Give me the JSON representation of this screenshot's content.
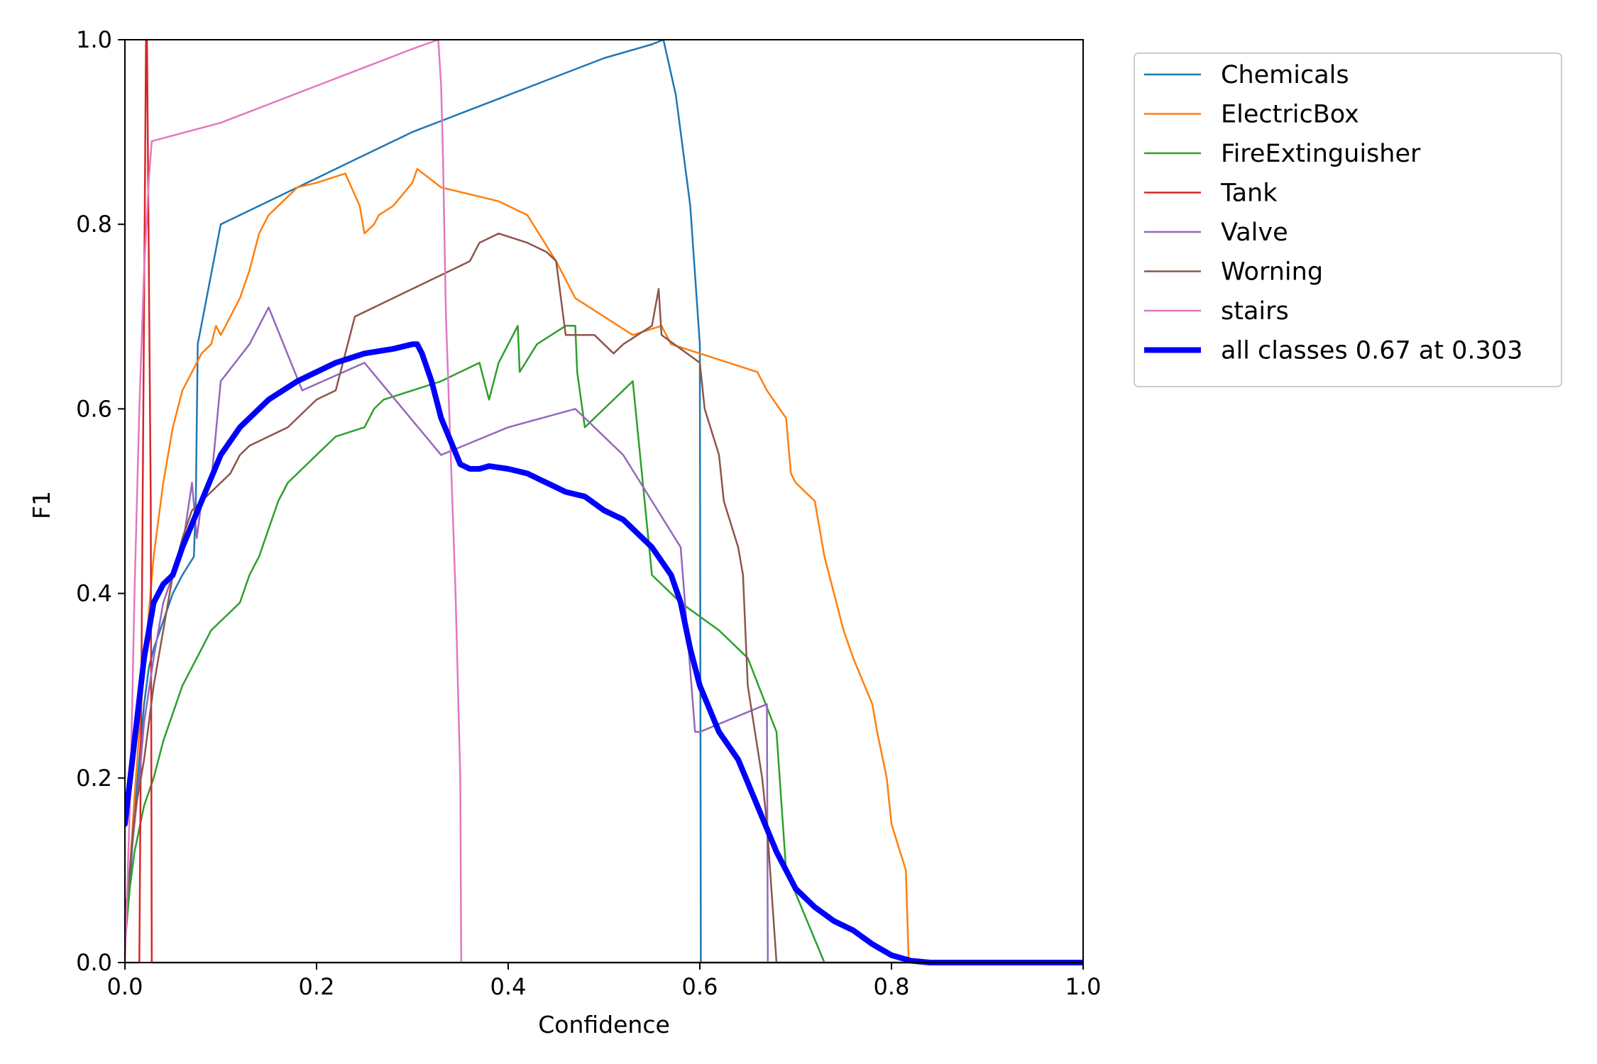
{
  "chart_data": {
    "type": "line",
    "title": "",
    "xlabel": "Confidence",
    "ylabel": "F1",
    "xlim": [
      0,
      1
    ],
    "ylim": [
      0,
      1
    ],
    "xticks": [
      "0.0",
      "0.2",
      "0.4",
      "0.6",
      "0.8",
      "1.0"
    ],
    "yticks": [
      "0.0",
      "0.2",
      "0.4",
      "0.6",
      "0.8",
      "1.0"
    ],
    "grid": false,
    "legend_position": "outside-right-top",
    "series": [
      {
        "name": "Chemicals",
        "color": "#1f77b4",
        "width": "thin",
        "x": [
          0.0,
          0.003,
          0.006,
          0.01,
          0.015,
          0.02,
          0.025,
          0.03,
          0.04,
          0.05,
          0.06,
          0.072,
          0.074,
          0.076,
          0.1,
          0.15,
          0.2,
          0.25,
          0.3,
          0.35,
          0.4,
          0.45,
          0.5,
          0.55,
          0.562,
          0.575,
          0.59,
          0.6,
          0.601,
          1.0
        ],
        "y": [
          0.02,
          0.07,
          0.1,
          0.16,
          0.22,
          0.28,
          0.32,
          0.34,
          0.37,
          0.4,
          0.42,
          0.44,
          0.5,
          0.67,
          0.8,
          0.825,
          0.85,
          0.875,
          0.9,
          0.92,
          0.94,
          0.96,
          0.98,
          0.995,
          1.0,
          0.94,
          0.82,
          0.67,
          0.0,
          0.0
        ]
      },
      {
        "name": "ElectricBox",
        "color": "#ff7f0e",
        "width": "thin",
        "x": [
          0.0,
          0.005,
          0.01,
          0.015,
          0.02,
          0.025,
          0.03,
          0.04,
          0.045,
          0.05,
          0.06,
          0.07,
          0.08,
          0.09,
          0.095,
          0.1,
          0.105,
          0.11,
          0.12,
          0.13,
          0.14,
          0.15,
          0.16,
          0.17,
          0.18,
          0.2,
          0.23,
          0.245,
          0.25,
          0.26,
          0.265,
          0.28,
          0.3,
          0.305,
          0.33,
          0.39,
          0.42,
          0.45,
          0.47,
          0.5,
          0.53,
          0.56,
          0.57,
          0.6,
          0.66,
          0.67,
          0.69,
          0.695,
          0.7,
          0.72,
          0.73,
          0.74,
          0.75,
          0.76,
          0.78,
          0.785,
          0.795,
          0.8,
          0.815,
          0.818,
          1.0
        ],
        "y": [
          0.05,
          0.1,
          0.18,
          0.25,
          0.32,
          0.38,
          0.44,
          0.52,
          0.55,
          0.58,
          0.62,
          0.64,
          0.66,
          0.67,
          0.69,
          0.68,
          0.69,
          0.7,
          0.72,
          0.75,
          0.79,
          0.81,
          0.82,
          0.83,
          0.84,
          0.845,
          0.855,
          0.82,
          0.79,
          0.8,
          0.81,
          0.82,
          0.845,
          0.86,
          0.84,
          0.825,
          0.81,
          0.76,
          0.72,
          0.7,
          0.68,
          0.69,
          0.67,
          0.66,
          0.64,
          0.62,
          0.59,
          0.53,
          0.52,
          0.5,
          0.44,
          0.4,
          0.36,
          0.33,
          0.28,
          0.25,
          0.2,
          0.15,
          0.1,
          0.0,
          0.0
        ]
      },
      {
        "name": "FireExtinguisher",
        "color": "#2ca02c",
        "width": "thin",
        "x": [
          0.0,
          0.005,
          0.01,
          0.02,
          0.03,
          0.04,
          0.05,
          0.06,
          0.07,
          0.08,
          0.09,
          0.1,
          0.11,
          0.12,
          0.13,
          0.14,
          0.15,
          0.16,
          0.17,
          0.18,
          0.2,
          0.22,
          0.25,
          0.26,
          0.27,
          0.3,
          0.33,
          0.37,
          0.38,
          0.39,
          0.41,
          0.412,
          0.43,
          0.46,
          0.47,
          0.472,
          0.48,
          0.5,
          0.53,
          0.55,
          0.58,
          0.62,
          0.65,
          0.68,
          0.69,
          0.73,
          1.0
        ],
        "y": [
          0.02,
          0.08,
          0.12,
          0.17,
          0.2,
          0.24,
          0.27,
          0.3,
          0.32,
          0.34,
          0.36,
          0.37,
          0.38,
          0.39,
          0.42,
          0.44,
          0.47,
          0.5,
          0.52,
          0.53,
          0.55,
          0.57,
          0.58,
          0.6,
          0.61,
          0.62,
          0.63,
          0.65,
          0.61,
          0.65,
          0.69,
          0.64,
          0.67,
          0.69,
          0.69,
          0.64,
          0.58,
          0.6,
          0.63,
          0.42,
          0.39,
          0.36,
          0.33,
          0.25,
          0.1,
          0.0,
          0.0
        ]
      },
      {
        "name": "Tank",
        "color": "#d62728",
        "width": "thin",
        "x": [
          0.0,
          0.015,
          0.022,
          0.023,
          0.027,
          0.028,
          1.0
        ],
        "y": [
          0.0,
          0.0,
          1.0,
          1.0,
          0.5,
          0.0,
          0.0
        ]
      },
      {
        "name": "Valve",
        "color": "#9467bd",
        "width": "thin",
        "x": [
          0.0,
          0.005,
          0.01,
          0.015,
          0.02,
          0.03,
          0.04,
          0.05,
          0.06,
          0.07,
          0.075,
          0.08,
          0.09,
          0.1,
          0.13,
          0.15,
          0.185,
          0.25,
          0.33,
          0.4,
          0.47,
          0.52,
          0.58,
          0.595,
          0.6,
          0.67,
          0.671,
          1.0
        ],
        "y": [
          0.05,
          0.1,
          0.15,
          0.2,
          0.26,
          0.33,
          0.39,
          0.42,
          0.45,
          0.52,
          0.46,
          0.5,
          0.52,
          0.63,
          0.67,
          0.71,
          0.62,
          0.65,
          0.55,
          0.58,
          0.6,
          0.55,
          0.45,
          0.25,
          0.25,
          0.28,
          0.0,
          0.0
        ]
      },
      {
        "name": "Worning",
        "color": "#8c564b",
        "width": "thin",
        "x": [
          0.0,
          0.005,
          0.01,
          0.02,
          0.03,
          0.04,
          0.05,
          0.06,
          0.07,
          0.08,
          0.09,
          0.1,
          0.11,
          0.12,
          0.13,
          0.15,
          0.17,
          0.18,
          0.2,
          0.22,
          0.24,
          0.3,
          0.32,
          0.36,
          0.37,
          0.39,
          0.42,
          0.44,
          0.45,
          0.46,
          0.49,
          0.51,
          0.52,
          0.55,
          0.557,
          0.56,
          0.6,
          0.605,
          0.62,
          0.625,
          0.64,
          0.645,
          0.65,
          0.665,
          0.67,
          0.68,
          1.0
        ],
        "y": [
          0.05,
          0.1,
          0.16,
          0.22,
          0.3,
          0.36,
          0.42,
          0.46,
          0.49,
          0.5,
          0.51,
          0.52,
          0.53,
          0.55,
          0.56,
          0.57,
          0.58,
          0.59,
          0.61,
          0.62,
          0.7,
          0.73,
          0.74,
          0.76,
          0.78,
          0.79,
          0.78,
          0.77,
          0.76,
          0.68,
          0.68,
          0.66,
          0.67,
          0.69,
          0.73,
          0.68,
          0.65,
          0.6,
          0.55,
          0.5,
          0.45,
          0.42,
          0.3,
          0.2,
          0.15,
          0.0,
          0.0
        ]
      },
      {
        "name": "stairs",
        "color": "#e377c2",
        "width": "thin",
        "x": [
          0.0,
          0.003,
          0.006,
          0.01,
          0.015,
          0.02,
          0.025,
          0.028,
          0.1,
          0.2,
          0.3,
          0.327,
          0.33,
          0.332,
          0.335,
          0.345,
          0.35,
          0.351,
          1.0
        ],
        "y": [
          0.0,
          0.1,
          0.2,
          0.4,
          0.6,
          0.75,
          0.85,
          0.89,
          0.91,
          0.95,
          0.99,
          1.0,
          0.95,
          0.87,
          0.7,
          0.4,
          0.2,
          0.0,
          0.0
        ]
      },
      {
        "name": "all classes 0.67 at 0.303",
        "color": "#0000ff",
        "width": "thick",
        "x": [
          0.0,
          0.01,
          0.02,
          0.03,
          0.04,
          0.05,
          0.06,
          0.08,
          0.1,
          0.12,
          0.15,
          0.18,
          0.2,
          0.22,
          0.25,
          0.28,
          0.3,
          0.305,
          0.31,
          0.32,
          0.33,
          0.35,
          0.36,
          0.37,
          0.38,
          0.4,
          0.42,
          0.44,
          0.46,
          0.48,
          0.5,
          0.52,
          0.55,
          0.57,
          0.58,
          0.59,
          0.6,
          0.62,
          0.64,
          0.66,
          0.68,
          0.7,
          0.72,
          0.74,
          0.76,
          0.78,
          0.8,
          0.82,
          0.84,
          0.86,
          0.9,
          1.0
        ],
        "y": [
          0.15,
          0.24,
          0.33,
          0.39,
          0.41,
          0.42,
          0.45,
          0.5,
          0.55,
          0.58,
          0.61,
          0.63,
          0.64,
          0.65,
          0.66,
          0.665,
          0.67,
          0.67,
          0.66,
          0.63,
          0.59,
          0.54,
          0.535,
          0.535,
          0.538,
          0.535,
          0.53,
          0.52,
          0.51,
          0.505,
          0.49,
          0.48,
          0.45,
          0.42,
          0.39,
          0.34,
          0.3,
          0.25,
          0.22,
          0.17,
          0.12,
          0.08,
          0.06,
          0.045,
          0.035,
          0.02,
          0.008,
          0.002,
          0.0,
          0.0,
          0.0,
          0.0
        ]
      }
    ]
  }
}
